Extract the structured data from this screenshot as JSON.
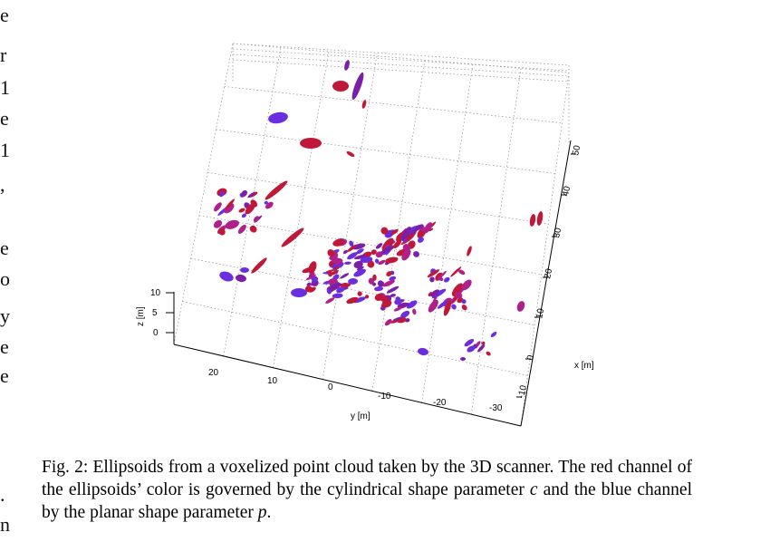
{
  "left_margin_fragments": [
    "e",
    "r",
    "1",
    "e",
    "1",
    ",",
    "e",
    "o",
    "y",
    "e",
    "e",
    ".",
    "n"
  ],
  "figure": {
    "axis_labels": {
      "x": "x [m]",
      "y": "y [m]",
      "z": "z [m]"
    },
    "x_ticks": [
      "-10",
      "0",
      "10",
      "20",
      "30",
      "40",
      "50"
    ],
    "y_ticks": [
      "20",
      "10",
      "0",
      "-10",
      "-20",
      "-30"
    ],
    "z_ticks": [
      "10",
      "5",
      "0"
    ]
  },
  "caption": {
    "part1": "Fig. 2: Ellipsoids from a voxelized point cloud taken by the 3D scanner. The red channel of the ellipsoids’ color is governed by the cylindrical shape parameter ",
    "var_c": "c",
    "part2": " and the blue channel by the planar shape parameter ",
    "var_p": "p",
    "part3": "."
  },
  "colors": {
    "red_dominant": "#c01838",
    "purple": "#7a1fa8",
    "blue_dominant": "#6a2ee0",
    "magenta": "#b0208a"
  }
}
